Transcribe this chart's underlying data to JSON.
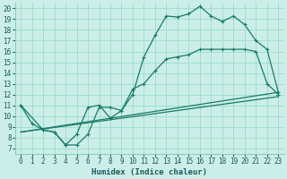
{
  "title": "",
  "xlabel": "Humidex (Indice chaleur)",
  "bg_color": "#cceee8",
  "grid_color": "#99ddcc",
  "line_color": "#1a7a6a",
  "xlim": [
    -0.5,
    23.5
  ],
  "ylim": [
    6.5,
    20.5
  ],
  "xticks": [
    0,
    1,
    2,
    3,
    4,
    5,
    6,
    7,
    8,
    9,
    10,
    11,
    12,
    13,
    14,
    15,
    16,
    17,
    18,
    19,
    20,
    21,
    22,
    23
  ],
  "yticks": [
    7,
    8,
    9,
    10,
    11,
    12,
    13,
    14,
    15,
    16,
    17,
    18,
    19,
    20
  ],
  "line1_x": [
    0,
    1,
    2,
    3,
    4,
    5,
    6,
    7,
    8,
    9,
    10,
    11,
    12,
    13,
    14,
    15,
    16,
    17,
    18,
    19,
    20,
    21,
    22,
    23
  ],
  "line1_y": [
    11.0,
    9.3,
    8.7,
    8.5,
    7.3,
    7.3,
    8.3,
    10.8,
    10.8,
    10.5,
    12.0,
    15.5,
    17.5,
    19.3,
    19.2,
    19.5,
    20.2,
    19.3,
    18.8,
    19.3,
    18.5,
    17.0,
    16.2,
    12.2
  ],
  "line2_x": [
    0,
    2,
    3,
    4,
    5,
    6,
    7,
    8,
    9,
    10,
    11,
    12,
    13,
    14,
    15,
    16,
    17,
    18,
    19,
    20,
    21,
    22,
    23
  ],
  "line2_y": [
    11.0,
    8.7,
    8.5,
    7.3,
    8.3,
    10.8,
    11.0,
    9.8,
    10.5,
    12.5,
    13.0,
    14.2,
    15.3,
    15.5,
    15.7,
    16.2,
    16.2,
    16.2,
    16.2,
    16.2,
    16.0,
    13.0,
    12.0
  ],
  "line3_x": [
    0,
    23
  ],
  "line3_y": [
    8.5,
    12.2
  ],
  "line4_x": [
    0,
    23
  ],
  "line4_y": [
    8.5,
    11.8
  ]
}
